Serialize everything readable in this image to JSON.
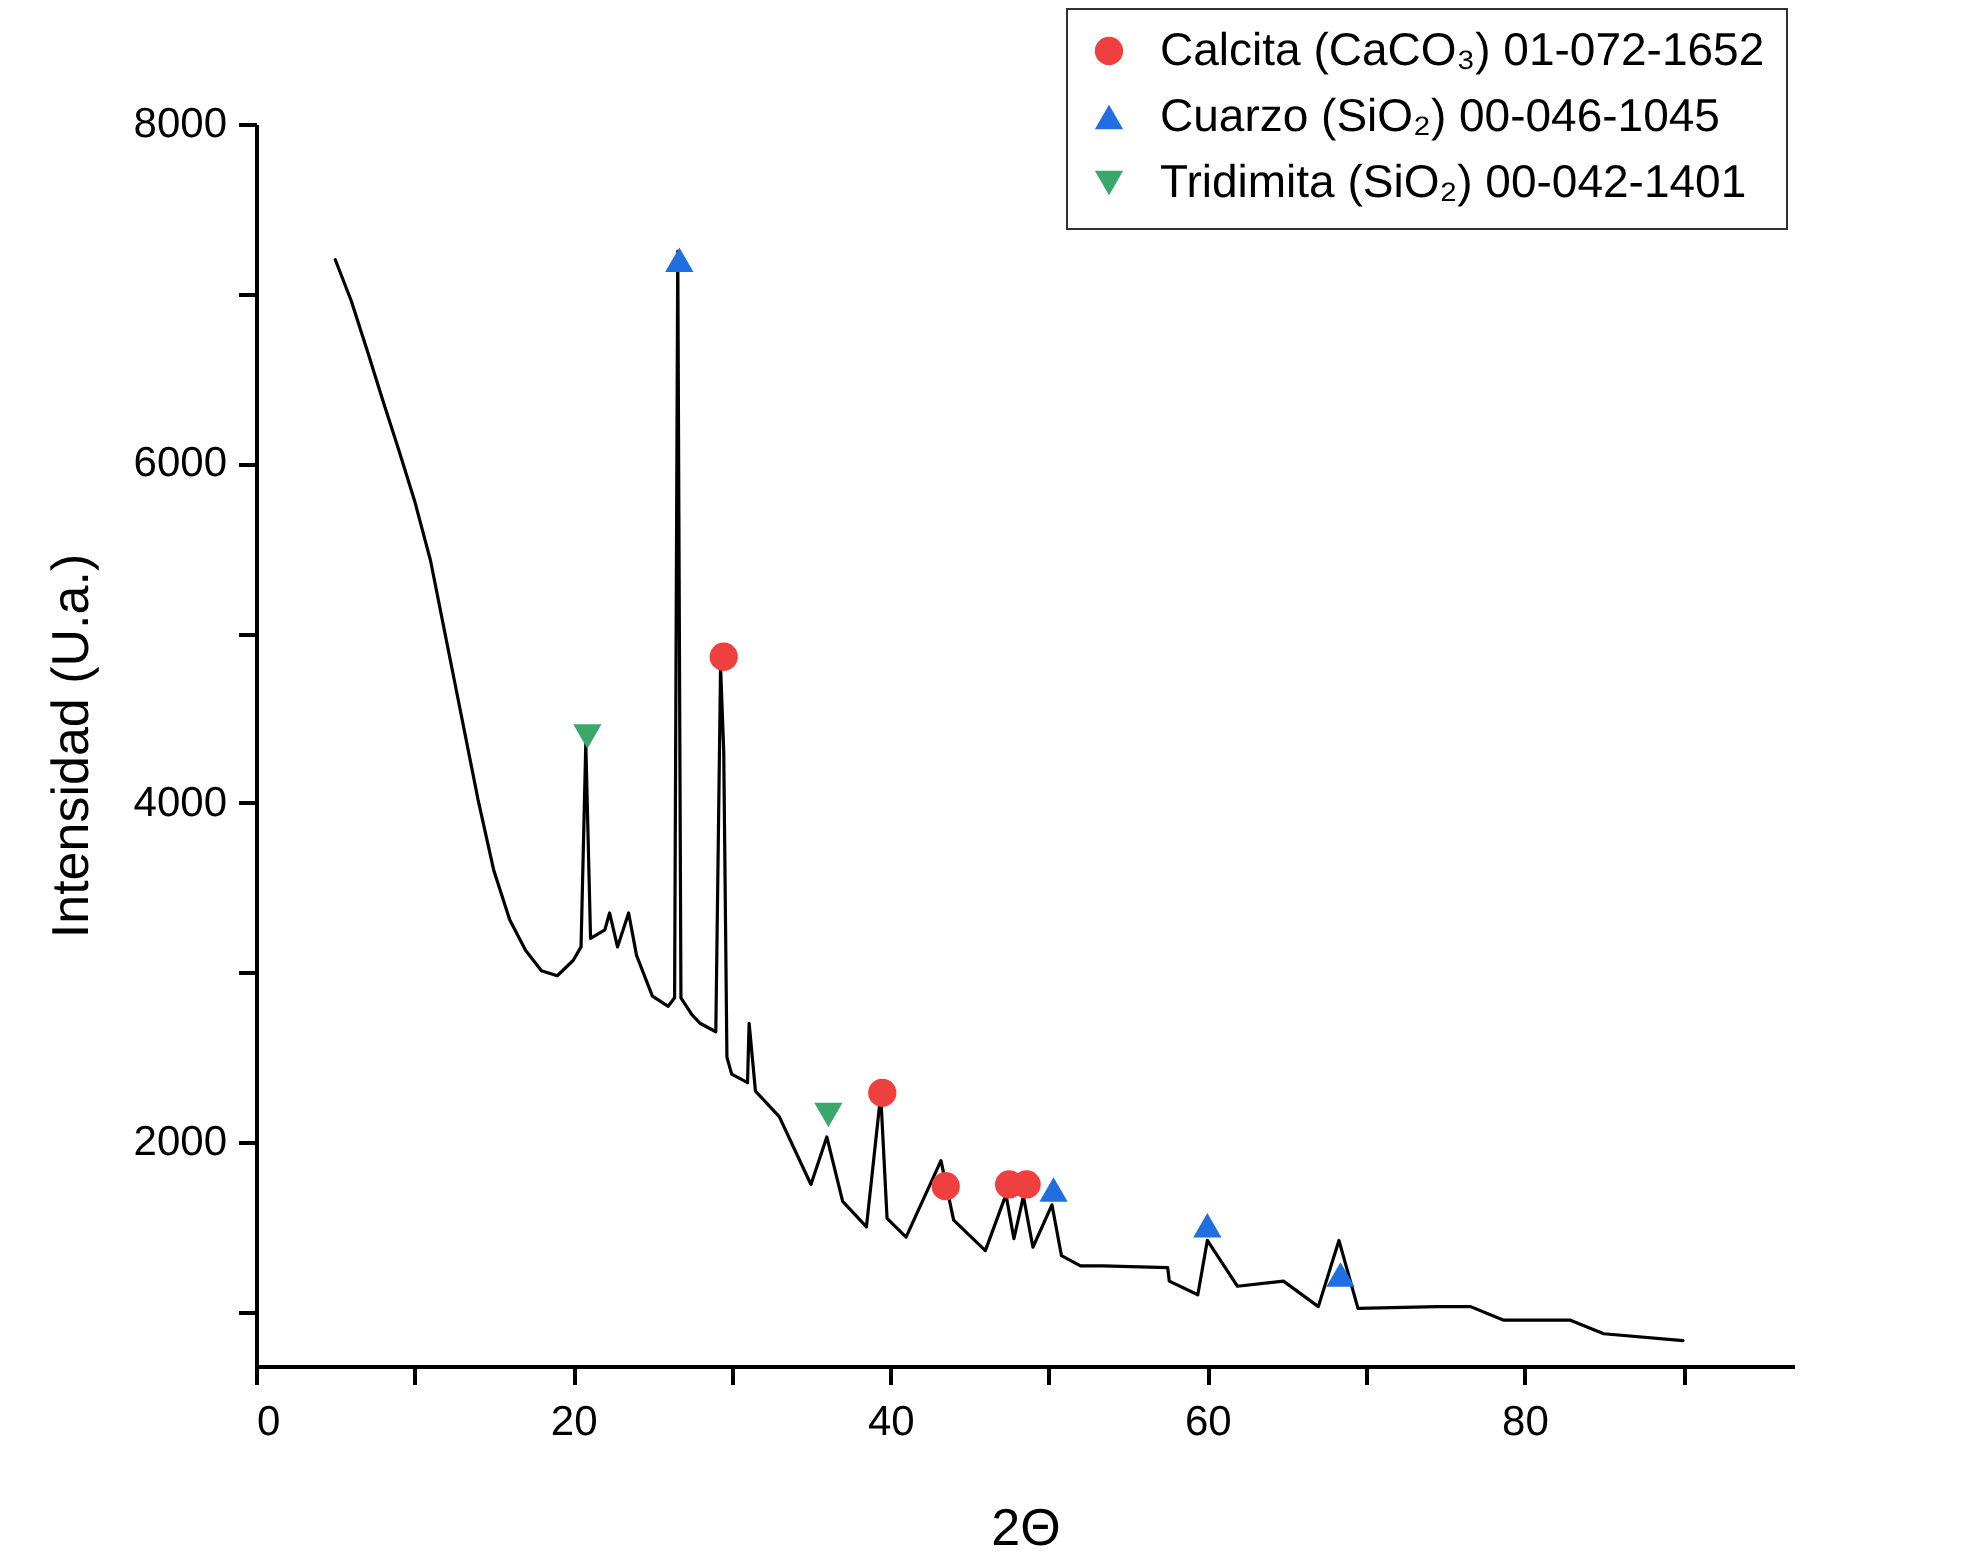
{
  "chart_data": {
    "type": "line",
    "xlabel": "2Θ",
    "ylabel": "Intensidad (U.a.)",
    "xlim": [
      0,
      97
    ],
    "xticks": [
      0,
      {
        "value": 10,
        "label": null
      },
      20,
      {
        "value": 30,
        "label": null
      },
      40,
      {
        "value": 50,
        "label": null
      },
      60,
      {
        "value": 70,
        "label": null
      },
      80,
      {
        "value": 90,
        "label": null
      }
    ],
    "ylim": [
      680,
      8000
    ],
    "yticks": [
      {
        "value": 1000,
        "label": null
      },
      2000,
      {
        "value": 3000,
        "label": null
      },
      4000,
      {
        "value": 5000,
        "label": null
      },
      6000,
      {
        "value": 7000,
        "label": null
      },
      8000
    ],
    "legend": "top right",
    "series": [
      {
        "color": "#000000",
        "line_style": "solid",
        "x": [
          5,
          6,
          7,
          8,
          9,
          10,
          11,
          12,
          13,
          14,
          15,
          16,
          17,
          18,
          19,
          20,
          20.5,
          20.8,
          21.1,
          22,
          22.3,
          22.8,
          23.5,
          24,
          25,
          26,
          26.4,
          26.6,
          26.8,
          27.5,
          28,
          29,
          29.3,
          29.5,
          29.7,
          30,
          31,
          31.1,
          31.5,
          33,
          35,
          36,
          37,
          38.5,
          39.4,
          39.8,
          41,
          43.2,
          44,
          46,
          47.3,
          47.8,
          48.4,
          49,
          50.2,
          50.8,
          52,
          53.4,
          57.5,
          57.6,
          59.4,
          60,
          61.9,
          64.8,
          67,
          68.3,
          69.5,
          74.5,
          76.6,
          78.7,
          82.9,
          85,
          90
        ],
        "values": [
          7200,
          6960,
          6670,
          6370,
          6080,
          5780,
          5430,
          4960,
          4490,
          4020,
          3600,
          3310,
          3130,
          3010,
          2980,
          3070,
          3150,
          4350,
          3200,
          3250,
          3350,
          3150,
          3350,
          3100,
          2860,
          2800,
          2850,
          7250,
          2850,
          2750,
          2700,
          2650,
          4800,
          4300,
          2500,
          2400,
          2350,
          2700,
          2300,
          2150,
          1750,
          2030,
          1650,
          1500,
          2280,
          1550,
          1440,
          1890,
          1540,
          1360,
          1690,
          1430,
          1680,
          1380,
          1630,
          1330,
          1270,
          1270,
          1260,
          1180,
          1100,
          1420,
          1150,
          1180,
          1030,
          1420,
          1020,
          1030,
          1030,
          950,
          950,
          870,
          830
        ]
      },
      {
        "type": "scatter",
        "name": "Calcita (CaCO₃) 01-072-1652",
        "color": "#ef4040",
        "marker": "circle",
        "x": [
          29.5,
          39.5,
          43.5,
          47.5,
          48.6
        ],
        "values": [
          4860,
          2290,
          1740,
          1750,
          1750
        ]
      },
      {
        "type": "scatter",
        "name": "Cuarzo (SiO₂) 00-046-1045",
        "color": "#1f6fe0",
        "marker": "triangle",
        "x": [
          26.7,
          50.3,
          60,
          68.4
        ],
        "values": [
          7200,
          1720,
          1510,
          1220
        ]
      },
      {
        "type": "scatter",
        "name": "Tridimita (SiO₂) 00-042-1401",
        "color": "#3aa86a",
        "marker": "triangle-down",
        "x": [
          20.9,
          36.1
        ],
        "values": [
          4390,
          2160
        ]
      }
    ]
  }
}
